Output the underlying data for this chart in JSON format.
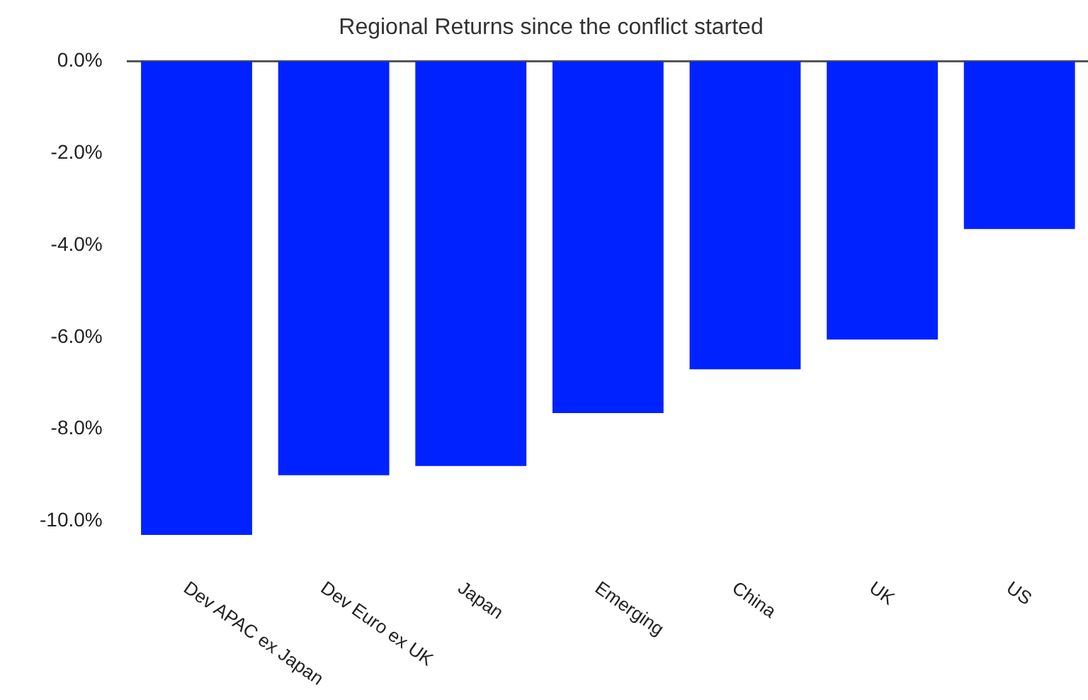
{
  "chart_data": {
    "type": "bar",
    "title": "Regional Returns since the conflict started",
    "categories": [
      "Dev APAC ex Japan",
      "Dev Euro ex UK",
      "Japan",
      "Emerging",
      "China",
      "UK",
      "US"
    ],
    "values": [
      -10.3,
      -9.0,
      -8.8,
      -7.65,
      -6.7,
      -6.05,
      -3.65
    ],
    "color": "#0022ff",
    "ylim": [
      -10.5,
      0
    ],
    "yticks": [
      {
        "value": 0,
        "label": "0.0%"
      },
      {
        "value": -2,
        "label": "-2.0%"
      },
      {
        "value": -4,
        "label": "-4.0%"
      },
      {
        "value": -6,
        "label": "-6.0%"
      },
      {
        "value": -8,
        "label": "-8.0%"
      },
      {
        "value": -10,
        "label": "-10.0%"
      }
    ],
    "grid": false,
    "legend": false
  }
}
